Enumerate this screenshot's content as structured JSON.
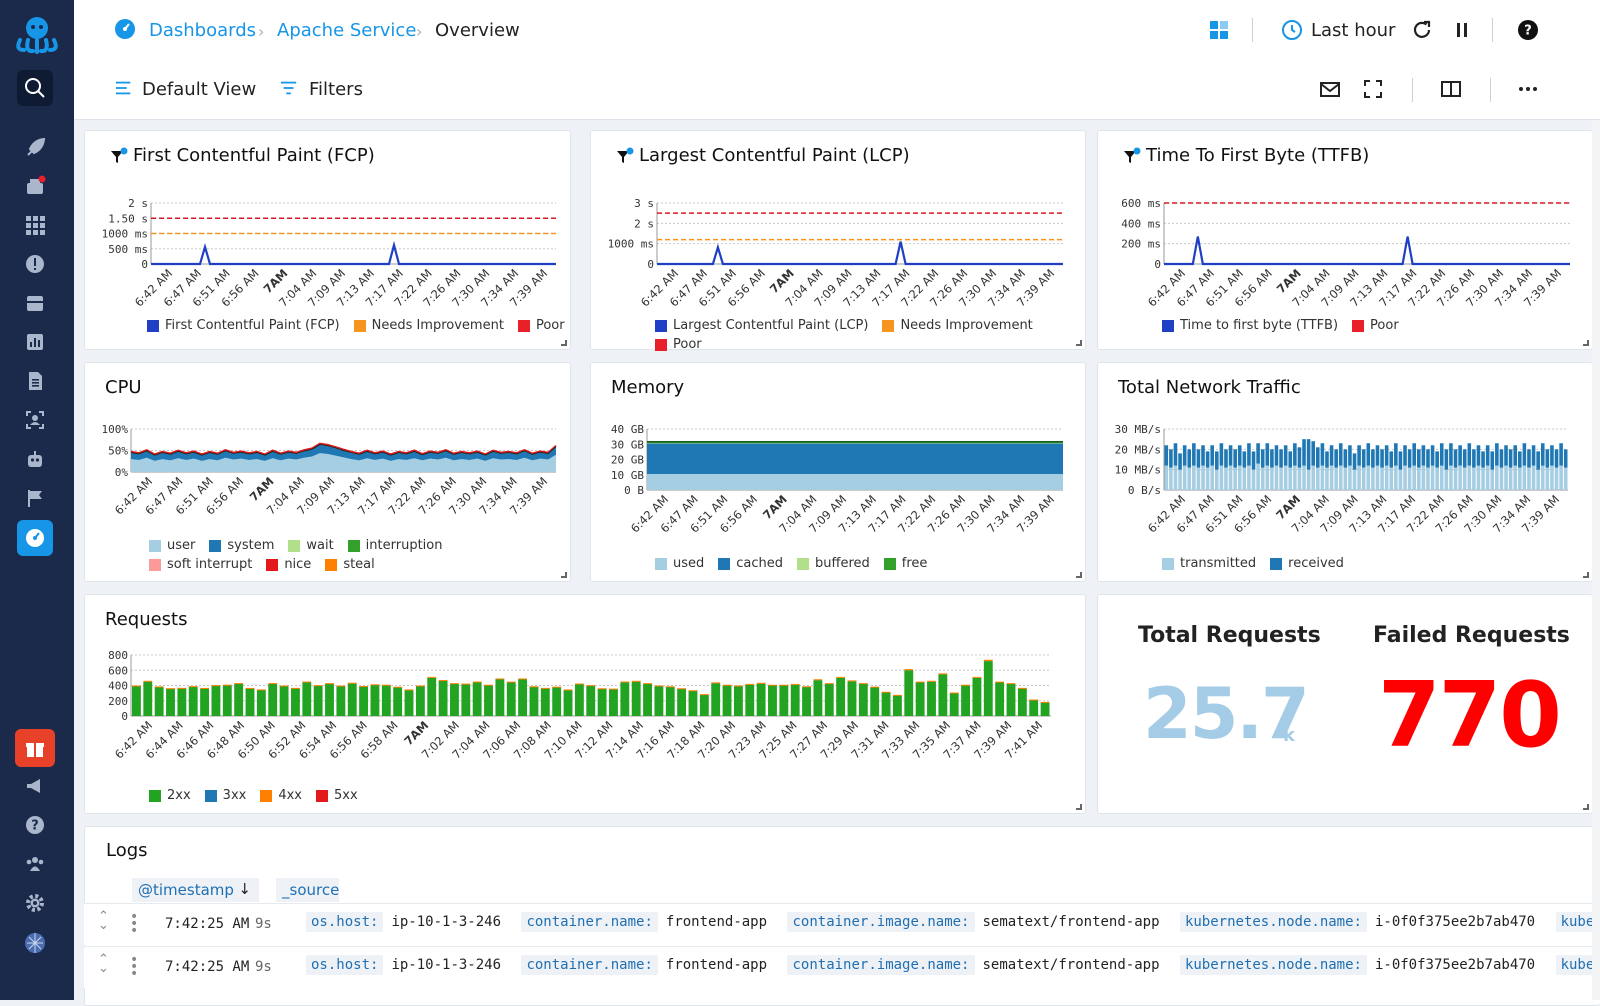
{
  "breadcrumb": {
    "root": "Dashboards",
    "app": "Apache Service",
    "page": "Overview"
  },
  "topbar": {
    "time_range": "Last hour",
    "view": "Default View",
    "filters": "Filters"
  },
  "colors": {
    "sidebar": "#1b2a4a",
    "accent": "#1795e6",
    "link": "#1795e6",
    "fail": "#ff0000",
    "total": "#a4cce6"
  },
  "x_ticks": [
    "6:42 AM",
    "6:47 AM",
    "6:51 AM",
    "6:56 AM",
    "7AM",
    "7:04 AM",
    "7:09 AM",
    "7:13 AM",
    "7:17 AM",
    "7:22 AM",
    "7:26 AM",
    "7:30 AM",
    "7:34 AM",
    "7:39 AM"
  ],
  "req_ticks": [
    "6:42 AM",
    "6:44 AM",
    "6:46 AM",
    "6:48 AM",
    "6:50 AM",
    "6:52 AM",
    "6:54 AM",
    "6:56 AM",
    "6:58 AM",
    "7AM",
    "7:02 AM",
    "7:04 AM",
    "7:06 AM",
    "7:08 AM",
    "7:10 AM",
    "7:12 AM",
    "7:14 AM",
    "7:16 AM",
    "7:18 AM",
    "7:20 AM",
    "7:23 AM",
    "7:25 AM",
    "7:27 AM",
    "7:29 AM",
    "7:31 AM",
    "7:33 AM",
    "7:35 AM",
    "7:37 AM",
    "7:39 AM",
    "7:41 AM"
  ],
  "panels": {
    "fcp": {
      "title": "First Contentful Paint (FCP)",
      "yticks": [
        "2 s",
        "1.50 s",
        "1000 ms",
        "500 ms",
        "0"
      ],
      "legend": [
        "First Contentful Paint (FCP)",
        "Needs Improvement",
        "Poor"
      ]
    },
    "lcp": {
      "title": "Largest Contentful Paint (LCP)",
      "yticks": [
        "3 s",
        "2 s",
        "1000 ms",
        "0"
      ],
      "legend": [
        "Largest Contentful Paint (LCP)",
        "Needs Improvement",
        "Poor"
      ]
    },
    "ttfb": {
      "title": "Time To First Byte (TTFB)",
      "yticks": [
        "600 ms",
        "400 ms",
        "200 ms",
        "0"
      ],
      "legend": [
        "Time to first byte (TTFB)",
        "Poor"
      ]
    },
    "cpu": {
      "title": "CPU",
      "yticks": [
        "100%",
        "50%",
        "0%"
      ],
      "legend": [
        "user",
        "system",
        "wait",
        "interruption",
        "soft interrupt",
        "nice",
        "steal"
      ]
    },
    "memory": {
      "title": "Memory",
      "yticks": [
        "40 GB",
        "30 GB",
        "20 GB",
        "10 GB",
        "0 B"
      ],
      "legend": [
        "used",
        "cached",
        "buffered",
        "free"
      ]
    },
    "network": {
      "title": "Total Network Traffic",
      "yticks": [
        "30 MB/s",
        "20 MB/s",
        "10 MB/s",
        "0 B/s"
      ],
      "legend": [
        "transmitted",
        "received"
      ]
    },
    "requests": {
      "title": "Requests",
      "yticks": [
        "800",
        "600",
        "400",
        "200",
        "0"
      ],
      "legend": [
        "2xx",
        "3xx",
        "4xx",
        "5xx"
      ]
    }
  },
  "legend_colors": {
    "fcp": [
      "#1f3fc4",
      "#f59520",
      "#e8202a"
    ],
    "lcp": [
      "#1f3fc4",
      "#f59520",
      "#e8202a"
    ],
    "ttfb": [
      "#1f3fc4",
      "#e8202a"
    ],
    "cpu": [
      "#a6cee3",
      "#1f78b4",
      "#b2df8a",
      "#33a02c",
      "#fb9a99",
      "#e31a1c",
      "#ff7f00"
    ],
    "memory": [
      "#a6cee3",
      "#1f78b4",
      "#b2df8a",
      "#33a02c"
    ],
    "network": [
      "#a6cee3",
      "#1f78b4"
    ],
    "requests": [
      "#22a322",
      "#1f78b4",
      "#ff7f00",
      "#e31a1c"
    ]
  },
  "stats": {
    "total_label": "Total Requests",
    "total_value": "25.7",
    "total_unit": "k",
    "failed_label": "Failed Requests",
    "failed_value": "770"
  },
  "logs": {
    "title": "Logs",
    "col_timestamp": "@timestamp",
    "col_source": "_source",
    "rows": [
      {
        "time": "7:42:25 AM",
        "ago": "9s",
        "fields": [
          [
            "os.host:",
            "ip-10-1-3-246"
          ],
          [
            "container.name:",
            "frontend-app"
          ],
          [
            "container.image.name:",
            "sematext/frontend-app"
          ],
          [
            "kubernetes.node.name:",
            "i-0f0f375ee2b7ab470"
          ],
          [
            "kubernetes.po",
            ""
          ]
        ]
      },
      {
        "time": "7:42:25 AM",
        "ago": "9s",
        "fields": [
          [
            "os.host:",
            "ip-10-1-3-246"
          ],
          [
            "container.name:",
            "frontend-app"
          ],
          [
            "container.image.name:",
            "sematext/frontend-app"
          ],
          [
            "kubernetes.node.name:",
            "i-0f0f375ee2b7ab470"
          ],
          [
            "kubernetes.po",
            ""
          ]
        ]
      }
    ]
  },
  "chart_data": [
    {
      "type": "line",
      "title": "First Contentful Paint (FCP)",
      "x": [
        "6:42 AM",
        "7:39 AM"
      ],
      "ylim": [
        0,
        2000
      ],
      "unit": "ms",
      "thresholds": {
        "Needs Improvement": 1000,
        "Poor": 1500
      },
      "series": [
        {
          "name": "First Contentful Paint (FCP)",
          "spikes": [
            {
              "x": "6:50 AM",
              "value": 560
            },
            {
              "x": "7:18 AM",
              "value": 620
            }
          ],
          "base": 0
        }
      ]
    },
    {
      "type": "line",
      "title": "Largest Contentful Paint (LCP)",
      "ylim": [
        0,
        3000
      ],
      "unit": "ms",
      "thresholds": {
        "Needs Improvement": 1200,
        "Poor": 2500
      },
      "series": [
        {
          "name": "Largest Contentful Paint (LCP)",
          "spikes": [
            {
              "x": "6:51 AM",
              "value": 820
            },
            {
              "x": "7:18 AM",
              "value": 1100
            }
          ],
          "base": 0
        }
      ]
    },
    {
      "type": "line",
      "title": "Time To First Byte (TTFB)",
      "ylim": [
        0,
        600
      ],
      "unit": "ms",
      "thresholds": {
        "Poor": 600
      },
      "series": [
        {
          "name": "Time to first byte (TTFB)",
          "spikes": [
            {
              "x": "6:47 AM",
              "value": 270
            },
            {
              "x": "7:18 AM",
              "value": 270
            }
          ],
          "base": 0
        }
      ]
    },
    {
      "type": "area",
      "title": "CPU",
      "ylim": [
        0,
        100
      ],
      "unit": "%",
      "series": [
        {
          "name": "user",
          "values": [
            30,
            28,
            33,
            26,
            30,
            27,
            32,
            28,
            31,
            26,
            30,
            27,
            33,
            29,
            31,
            28,
            30,
            26,
            32,
            27,
            31,
            29,
            33,
            36,
            44,
            42,
            38,
            34,
            30,
            27,
            32,
            28,
            31,
            26,
            30,
            28,
            32,
            27,
            31,
            29,
            33,
            27,
            30,
            28,
            31,
            26,
            32,
            29,
            30,
            28,
            33,
            27,
            31,
            29,
            40
          ]
        },
        {
          "name": "system",
          "values": [
            14,
            13,
            15,
            12,
            14,
            13,
            15,
            13,
            14,
            12,
            14,
            13,
            15,
            13,
            14,
            13,
            14,
            12,
            15,
            13,
            14,
            13,
            15,
            16,
            19,
            18,
            17,
            15,
            14,
            13,
            15,
            13,
            14,
            12,
            14,
            13,
            15,
            12,
            14,
            13,
            15,
            13,
            14,
            13,
            14,
            12,
            15,
            13,
            14,
            13,
            15,
            13,
            14,
            13,
            18
          ]
        }
      ]
    },
    {
      "type": "area",
      "title": "Memory",
      "ylim": [
        0,
        40
      ],
      "unit": "GB",
      "series": [
        {
          "name": "used",
          "value": 10.5
        },
        {
          "name": "cached",
          "value": 20
        },
        {
          "name": "buffered",
          "value": 0.3
        },
        {
          "name": "free",
          "value": 0.8
        }
      ]
    },
    {
      "type": "bar",
      "title": "Total Network Traffic",
      "ylim": [
        0,
        30
      ],
      "unit": "MB/s",
      "series": [
        {
          "name": "transmitted",
          "values": [
            12,
            11,
            12,
            10,
            12,
            11,
            12,
            11,
            12,
            11,
            12,
            10,
            12,
            11,
            12,
            11,
            12,
            11,
            12,
            10,
            13,
            11,
            12,
            11,
            12,
            11,
            12,
            11,
            12,
            11,
            12,
            10,
            12,
            11,
            12,
            11,
            12,
            11,
            12,
            11,
            12,
            10,
            12,
            11,
            12,
            11,
            12,
            11,
            12,
            11,
            12,
            10,
            12,
            11,
            12,
            11,
            12,
            11,
            12,
            11,
            12,
            10,
            12,
            11,
            12,
            11,
            12,
            11,
            12,
            11,
            12,
            10,
            12,
            11,
            12,
            11,
            12,
            11,
            12,
            11,
            12,
            10,
            12,
            11,
            12,
            11,
            12,
            11
          ]
        },
        {
          "name": "received",
          "values": [
            10,
            9,
            11,
            8,
            10,
            9,
            11,
            9,
            10,
            8,
            10,
            9,
            11,
            9,
            10,
            9,
            10,
            8,
            11,
            9,
            10,
            9,
            11,
            9,
            10,
            9,
            10,
            8,
            11,
            10,
            13,
            15,
            12,
            10,
            11,
            8,
            10,
            9,
            11,
            9,
            10,
            8,
            10,
            9,
            11,
            9,
            10,
            9,
            10,
            8,
            11,
            9,
            10,
            9,
            11,
            9,
            10,
            9,
            10,
            8,
            11,
            10,
            11,
            9,
            10,
            9,
            11,
            9,
            10,
            8,
            10,
            9,
            11,
            9,
            10,
            9,
            10,
            8,
            11,
            9,
            10,
            9,
            11,
            9,
            10,
            9,
            11,
            9,
            10,
            9,
            11,
            9,
            10,
            9,
            11,
            9
          ]
        }
      ]
    },
    {
      "type": "bar",
      "title": "Requests",
      "ylim": [
        0,
        800
      ],
      "series": [
        {
          "name": "2xx",
          "values": [
            390,
            450,
            380,
            355,
            360,
            380,
            360,
            395,
            400,
            420,
            360,
            340,
            420,
            390,
            360,
            440,
            395,
            420,
            390,
            425,
            385,
            405,
            400,
            375,
            340,
            390,
            500,
            460,
            420,
            415,
            440,
            400,
            480,
            440,
            480,
            380,
            360,
            375,
            340,
            415,
            395,
            355,
            350,
            440,
            450,
            420,
            390,
            380,
            355,
            330,
            280,
            430,
            400,
            390,
            410,
            425,
            400,
            400,
            410,
            380,
            470,
            420,
            500,
            455,
            420,
            375,
            310,
            270,
            600,
            440,
            450,
            545,
            300,
            400,
            500,
            720,
            440,
            420,
            360,
            210,
            180
          ]
        },
        {
          "name": "4xx",
          "values": [
            10,
            12,
            8,
            10,
            9,
            12,
            8,
            10,
            11,
            12,
            8,
            9,
            12,
            10,
            9,
            12,
            10,
            11,
            9,
            12,
            9,
            11,
            10,
            9,
            8,
            10,
            13,
            12,
            11,
            10,
            12,
            10,
            12,
            11,
            12,
            10,
            9,
            10,
            8,
            11,
            10,
            9,
            9,
            12,
            12,
            11,
            10,
            10,
            9,
            8,
            7,
            11,
            10,
            10,
            11,
            11,
            10,
            10,
            11,
            10,
            12,
            11,
            13,
            12,
            11,
            10,
            8,
            7,
            15,
            11,
            12,
            14,
            8,
            10,
            13,
            18,
            11,
            11,
            9,
            6,
            5
          ]
        }
      ]
    }
  ]
}
